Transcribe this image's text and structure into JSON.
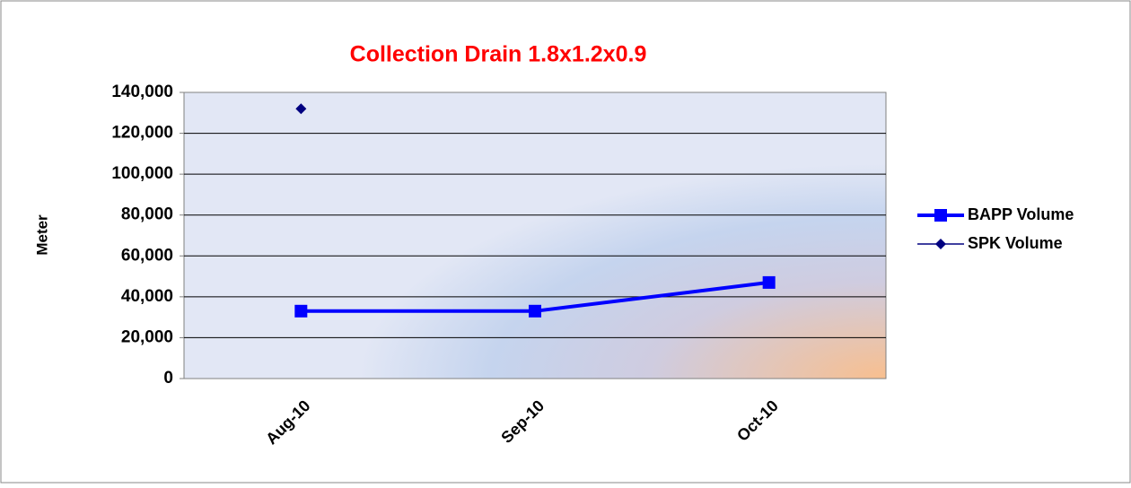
{
  "chart_data": {
    "type": "line",
    "title": "Collection Drain 1.8x1.2x0.9",
    "y_label": "Meter",
    "categories": [
      "Aug-10",
      "Sep-10",
      "Oct-10"
    ],
    "series": [
      {
        "name": "BAPP Volume",
        "color": "#0000ff",
        "marker": "square",
        "values": [
          33000,
          33000,
          47000
        ]
      },
      {
        "name": "SPK Volume",
        "color": "#000080",
        "marker": "diamond",
        "values": [
          132000,
          null,
          null
        ]
      }
    ],
    "ylim": [
      0,
      140000
    ],
    "yticks": [
      0,
      {
        "value": 20000,
        "label": "20,000"
      },
      {
        "value": 40000,
        "label": "40,000"
      },
      {
        "value": 60000,
        "label": "60,000"
      },
      {
        "value": 80000,
        "label": "80,000"
      },
      {
        "value": 100000,
        "label": "100,000"
      },
      {
        "value": 120000,
        "label": "120,000"
      },
      {
        "value": 140000,
        "label": "140,000"
      }
    ],
    "grid": true,
    "legend": "right"
  }
}
